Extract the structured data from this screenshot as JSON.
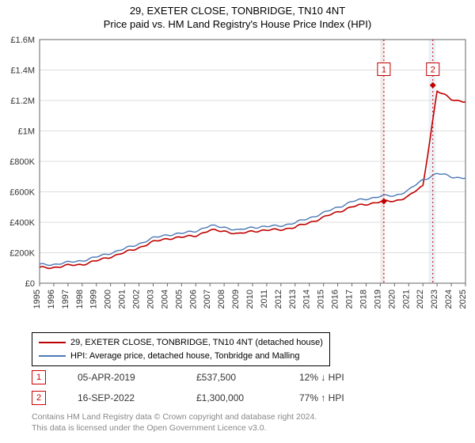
{
  "title": {
    "line1": "29, EXETER CLOSE, TONBRIDGE, TN10 4NT",
    "line2": "Price paid vs. HM Land Registry's House Price Index (HPI)"
  },
  "chart": {
    "type": "line",
    "background_color": "#ffffff",
    "plot_border_color": "#666666",
    "grid_color": "#dddddd",
    "axis_text_color": "#333333",
    "axis_fontsize": 11,
    "title_fontsize": 13,
    "x": {
      "ticks": [
        "1995",
        "1996",
        "1997",
        "1998",
        "1999",
        "2000",
        "2001",
        "2002",
        "2003",
        "2004",
        "2005",
        "2006",
        "2007",
        "2008",
        "2009",
        "2010",
        "2011",
        "2012",
        "2013",
        "2014",
        "2015",
        "2016",
        "2017",
        "2018",
        "2019",
        "2020",
        "2021",
        "2022",
        "2023",
        "2024",
        "2025"
      ],
      "label_rotation": -90
    },
    "y": {
      "ticks": [
        0,
        200000,
        400000,
        600000,
        800000,
        1000000,
        1200000,
        1400000,
        1600000
      ],
      "tick_labels": [
        "£0",
        "£200K",
        "£400K",
        "£600K",
        "£800K",
        "£1M",
        "£1.2M",
        "£1.4M",
        "£1.6M"
      ],
      "lim": [
        0,
        1600000
      ]
    },
    "highlight_bands": [
      {
        "x0_idx": 24.0,
        "x1_idx": 24.3,
        "fill": "#f3e9e9"
      },
      {
        "x0_idx": 27.4,
        "x1_idx": 27.9,
        "fill": "#ecf1f8"
      }
    ],
    "marker_lines": [
      {
        "x_idx": 24.25,
        "label": "1",
        "label_y": 1400000,
        "color": "#c00000"
      },
      {
        "x_idx": 27.7,
        "label": "2",
        "label_y": 1400000,
        "color": "#c00000"
      }
    ],
    "series": [
      {
        "name": "29, EXETER CLOSE, TONBRIDGE, TN10 4NT (detached house)",
        "color": "#c00000",
        "line_width": 1.6,
        "y_by_tick": [
          100000,
          105000,
          115000,
          125000,
          145000,
          175000,
          200000,
          235000,
          270000,
          295000,
          300000,
          315000,
          345000,
          345000,
          320000,
          345000,
          345000,
          355000,
          365000,
          400000,
          430000,
          470000,
          500000,
          520000,
          535000,
          540000,
          570000,
          640000,
          1260000,
          1210000,
          1190000
        ],
        "dash": "none"
      },
      {
        "name": "HPI: Average price, detached house, Tonbridge and Malling",
        "color": "#4a78b5",
        "line_width": 1.4,
        "y_by_tick": [
          120000,
          125000,
          135000,
          150000,
          170000,
          200000,
          225000,
          260000,
          295000,
          320000,
          325000,
          345000,
          375000,
          370000,
          345000,
          370000,
          370000,
          380000,
          395000,
          430000,
          460000,
          500000,
          535000,
          555000,
          570000,
          575000,
          610000,
          680000,
          720000,
          700000,
          690000
        ],
        "dash": "none"
      }
    ],
    "sale_markers": [
      {
        "x_idx": 24.25,
        "y": 537500,
        "color": "#c00000"
      },
      {
        "x_idx": 27.7,
        "y": 1300000,
        "color": "#c00000"
      }
    ]
  },
  "legend": {
    "rows": [
      {
        "color": "#c00000",
        "text": "29, EXETER CLOSE, TONBRIDGE, TN10 4NT (detached house)"
      },
      {
        "color": "#4a78b5",
        "text": "HPI: Average price, detached house, Tonbridge and Malling"
      }
    ]
  },
  "markers_table": {
    "rows": [
      {
        "badge": "1",
        "date": "05-APR-2019",
        "price": "£537,500",
        "diff": "12% ↓ HPI"
      },
      {
        "badge": "2",
        "date": "16-SEP-2022",
        "price": "£1,300,000",
        "diff": "77% ↑ HPI"
      }
    ]
  },
  "footnote": {
    "line1": "Contains HM Land Registry data © Crown copyright and database right 2024.",
    "line2": "This data is licensed under the Open Government Licence v3.0."
  }
}
